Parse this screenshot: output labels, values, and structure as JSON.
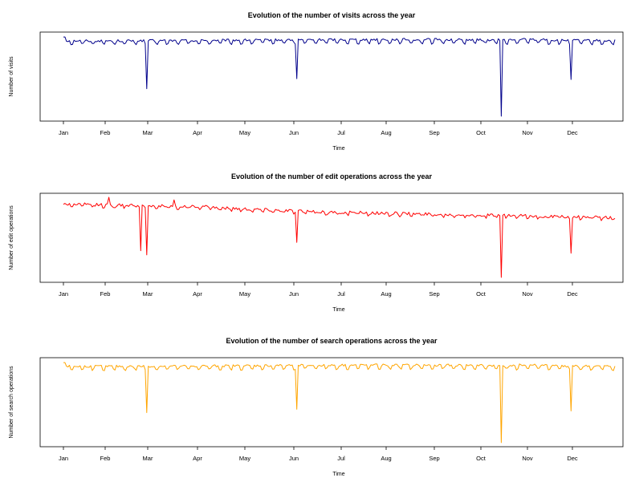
{
  "chart_data": [
    {
      "type": "line",
      "title": "Evolution of the number of visits across the year",
      "xlabel": "Time",
      "ylabel": "Number of visits",
      "x_ticks": [
        "Jan",
        "Feb",
        "Mar",
        "Apr",
        "May",
        "Jun",
        "Jul",
        "Aug",
        "Sep",
        "Oct",
        "Nov",
        "Dec"
      ],
      "xlim": [
        "2013-01-01",
        "2013-12-31"
      ],
      "ylim": [
        0,
        100
      ],
      "grid": false,
      "color": "#00008B",
      "series": [
        {
          "values_by_day": {
            "profile": "weekly-cycle",
            "spikes": [
              {
                "date": "2013-02-25",
                "value": 36
              },
              {
                "date": "2013-06-04",
                "value": 48
              },
              {
                "date": "2013-10-17",
                "value": 3
              },
              {
                "date": "2013-12-02",
                "value": 47
              }
            ],
            "range": [
              55,
              100
            ]
          }
        }
      ]
    },
    {
      "type": "line",
      "title": "Evolution of the number of edit operations across the year",
      "xlabel": "Time",
      "ylabel": "Number of edit operations",
      "x_ticks": [
        "Jan",
        "Feb",
        "Mar",
        "Apr",
        "May",
        "Jun",
        "Jul",
        "Aug",
        "Sep",
        "Oct",
        "Nov",
        "Dec"
      ],
      "xlim": [
        "2013-01-01",
        "2013-12-31"
      ],
      "ylim": [
        0,
        100
      ],
      "grid": false,
      "color": "#FF0000",
      "series": [
        {
          "values_by_day": {
            "profile": "slow-decline",
            "spikes": [
              {
                "date": "2013-02-21",
                "value": 35
              },
              {
                "date": "2013-02-25",
                "value": 30
              },
              {
                "date": "2013-06-04",
                "value": 45
              },
              {
                "date": "2013-10-17",
                "value": 3
              },
              {
                "date": "2013-12-02",
                "value": 32
              }
            ],
            "range": [
              40,
              100
            ]
          }
        }
      ]
    },
    {
      "type": "line",
      "title": "Evolution of the number of search operations across the year",
      "xlabel": "Time",
      "ylabel": "Number of search operations",
      "x_ticks": [
        "Jan",
        "Feb",
        "Mar",
        "Apr",
        "May",
        "Jun",
        "Jul",
        "Aug",
        "Sep",
        "Oct",
        "Nov",
        "Dec"
      ],
      "xlim": [
        "2013-01-01",
        "2013-12-31"
      ],
      "ylim": [
        0,
        100
      ],
      "grid": false,
      "color": "#FFA500",
      "series": [
        {
          "values_by_day": {
            "profile": "weekly-cycle",
            "spikes": [
              {
                "date": "2013-02-25",
                "value": 38
              },
              {
                "date": "2013-06-04",
                "value": 42
              },
              {
                "date": "2013-10-17",
                "value": 2
              },
              {
                "date": "2013-12-02",
                "value": 40
              }
            ],
            "range": [
              55,
              100
            ]
          }
        }
      ]
    }
  ]
}
